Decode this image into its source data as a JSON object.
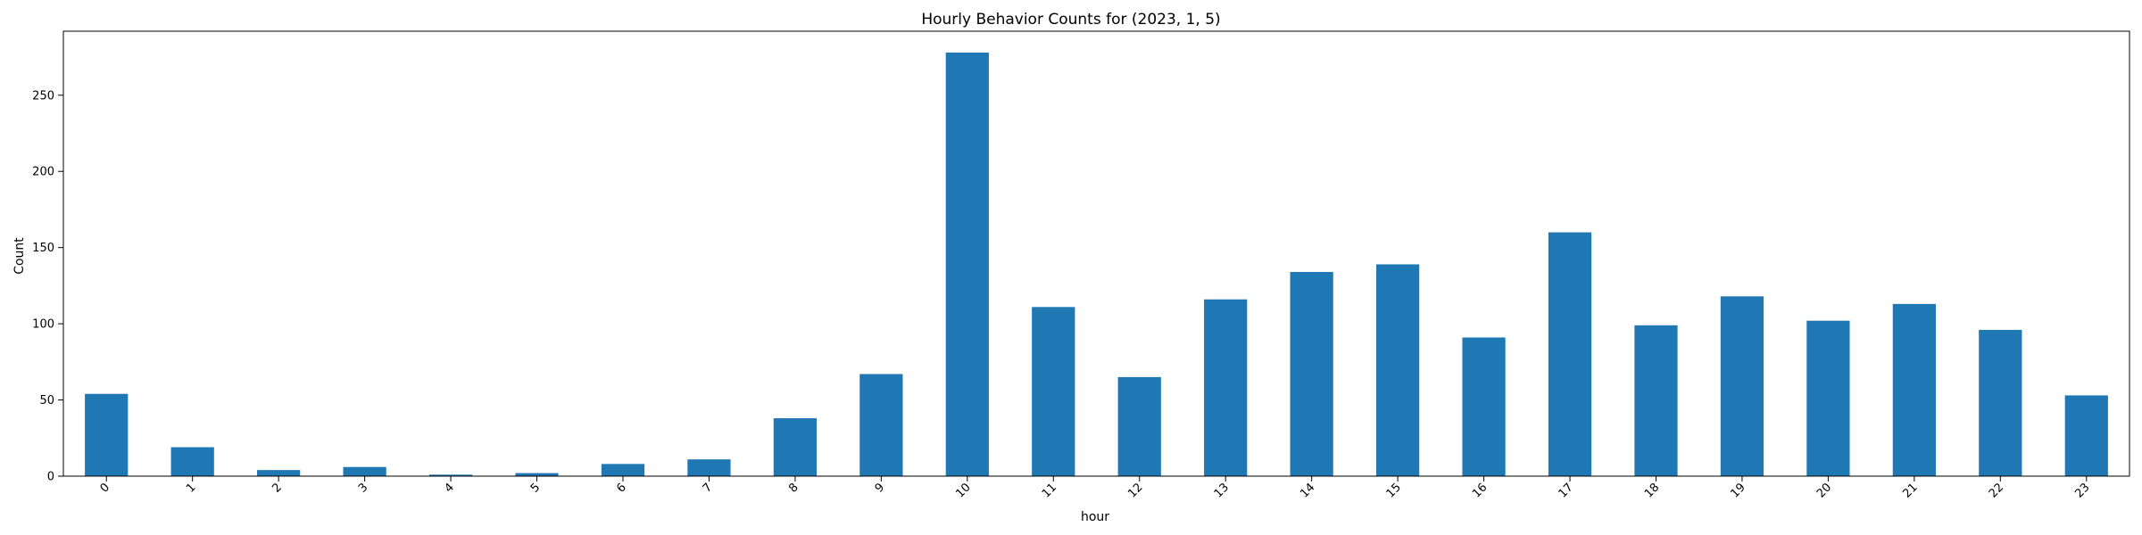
{
  "chart_data": {
    "type": "bar",
    "title": "Hourly Behavior Counts for (2023, 1, 5)",
    "xlabel": "hour",
    "ylabel": "Count",
    "categories": [
      "0",
      "1",
      "2",
      "3",
      "4",
      "5",
      "6",
      "7",
      "8",
      "9",
      "10",
      "11",
      "12",
      "13",
      "14",
      "15",
      "16",
      "17",
      "18",
      "19",
      "20",
      "21",
      "22",
      "23"
    ],
    "values": [
      54,
      19,
      4,
      6,
      1,
      2,
      8,
      11,
      38,
      67,
      278,
      111,
      65,
      116,
      134,
      139,
      91,
      160,
      99,
      118,
      102,
      113,
      96,
      53
    ],
    "ylim": [
      0,
      292
    ],
    "yticks": [
      0,
      50,
      100,
      150,
      200,
      250
    ],
    "bar_color": "#1f77b4",
    "grid": false,
    "legend": "none",
    "xtick_rotation_deg": 45
  }
}
